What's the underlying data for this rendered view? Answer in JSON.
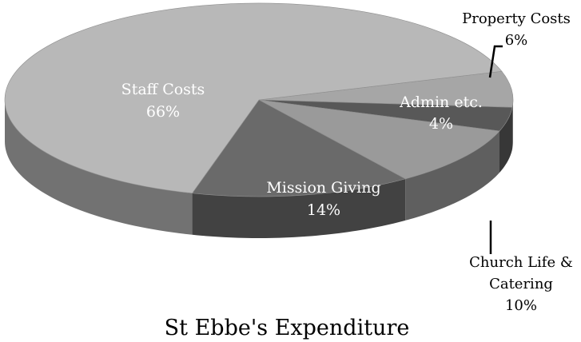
{
  "chart_data": {
    "type": "pie",
    "title": "St Ebbe's Expenditure",
    "slices": [
      {
        "name": "Property Costs",
        "value": 6,
        "label": "6%",
        "color": "#a6a6a6"
      },
      {
        "name": "Admin etc.",
        "value": 4,
        "label": "4%",
        "color": "#585858"
      },
      {
        "name": "Church Life & Catering",
        "name_lines": [
          "Church Life &",
          "Catering"
        ],
        "value": 10,
        "label": "10%",
        "color": "#9a9a9a"
      },
      {
        "name": "Mission Giving",
        "value": 14,
        "label": "14%",
        "color": "#6a6a6a"
      },
      {
        "name": "Staff Costs",
        "value": 66,
        "label": "66%",
        "color": "#b8b8b8"
      }
    ],
    "legend": "none",
    "style": "3d-exploded-free"
  }
}
